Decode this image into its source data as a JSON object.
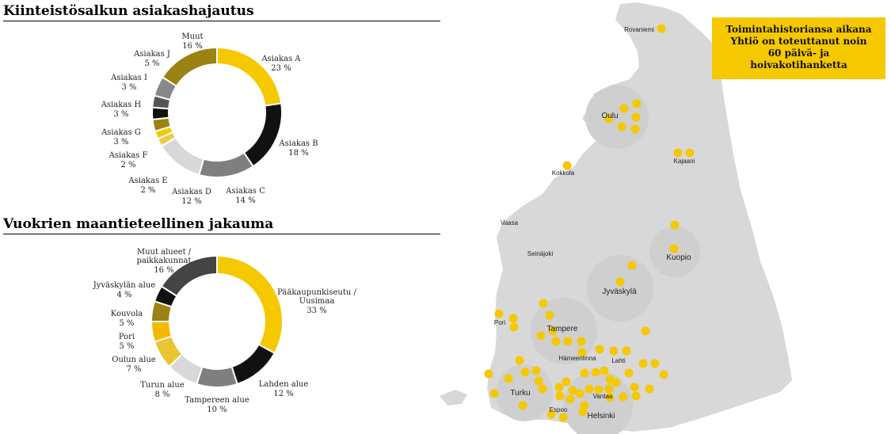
{
  "section1_title": "Kiinteistösalkun asiakashajautus",
  "section2_title": "Vuokrien maantieteellinen jakauma",
  "callout": [
    "Toimintahistoriansa aikana",
    "Yhtiö on toteuttanut noin",
    "60 päivä- ja",
    "hoivakotihanketta"
  ],
  "colors": {
    "gold": "#f5c800",
    "black": "#111111",
    "dark_grey": "#555555",
    "mid_grey": "#888888",
    "light_grey": "#d8d8d8",
    "olive": "#9a8213",
    "light_gold": "#e8c531",
    "map_land": "#d8d8d8",
    "map_dot": "#f5c800"
  },
  "chart_data": [
    {
      "type": "pie",
      "title": "Kiinteistösalkun asiakashajautus",
      "labels": [
        "Asiakas A",
        "Asiakas B",
        "Asiakas C",
        "Asiakas D",
        "Asiakas E",
        "Asiakas F",
        "Asiakas G",
        "Asiakas H",
        "Asiakas I",
        "Asiakas J",
        "Muut"
      ],
      "values": [
        23,
        18,
        14,
        12,
        2,
        2,
        3,
        3,
        3,
        5,
        16
      ],
      "value_labels": [
        "23 %",
        "18 %",
        "14 %",
        "12 %",
        "2 %",
        "2 %",
        "3 %",
        "3 %",
        "3 %",
        "5 %",
        "16 %"
      ],
      "colors": [
        "#f5c800",
        "#111111",
        "#7f7f7f",
        "#d8d8d8",
        "#f2c84b",
        "#f5c800",
        "#9a8213",
        "#111111",
        "#555555",
        "#888888",
        "#9a8213"
      ]
    },
    {
      "type": "pie",
      "title": "Vuokrien maantieteellinen jakauma",
      "labels": [
        "Pääkaupunkiseutu / Uusimaa",
        "Lahden alue",
        "Tampereen alue",
        "Turun alue",
        "Oulun alue",
        "Pori",
        "Kouvola",
        "Jyväskylän alue",
        "Muut alueet / paikkakunnat"
      ],
      "values": [
        33,
        12,
        10,
        8,
        7,
        5,
        5,
        4,
        16
      ],
      "value_labels": [
        "33 %",
        "12 %",
        "10 %",
        "8 %",
        "7 %",
        "5 %",
        "5 %",
        "4 %",
        "16 %"
      ],
      "colors": [
        "#f5c800",
        "#111111",
        "#7f7f7f",
        "#d8d8d8",
        "#e8c531",
        "#f5b800",
        "#9a8213",
        "#111111",
        "#444444"
      ]
    }
  ],
  "map": {
    "cities": [
      "Rovaniemi",
      "Oulu",
      "Kajaani",
      "Kokkola",
      "Vaasa",
      "Seinäjoki",
      "Kuopio",
      "Jyväskylä",
      "Pori",
      "Tampere",
      "Hämeenlinna",
      "Lahti",
      "Turku",
      "Vantaa",
      "Espoo",
      "Helsinki"
    ]
  }
}
